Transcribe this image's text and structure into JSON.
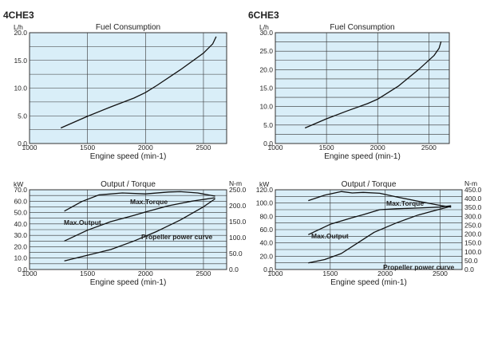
{
  "chart_data": [
    {
      "model": "4CHE3",
      "type": "line",
      "title": "Fuel Consumption",
      "xlabel": "Engine speed (min-1)",
      "ylabel": "L/h",
      "xlim": [
        1000,
        2700
      ],
      "ylim": [
        0,
        20
      ],
      "xticks": [
        "1000",
        "1500",
        "2000",
        "2500"
      ],
      "yticks": [
        "0.0",
        "5.0",
        "10.0",
        "15.0",
        "20.0"
      ],
      "grid": true,
      "series": [
        {
          "x": [
            1270,
            1500,
            1700,
            1900,
            2000,
            2100,
            2300,
            2500,
            2580,
            2610
          ],
          "y": [
            2.8,
            4.9,
            6.6,
            8.2,
            9.2,
            10.5,
            13.3,
            16.3,
            18.0,
            19.3
          ]
        }
      ]
    },
    {
      "model": "6CHE3",
      "type": "line",
      "title": "Fuel Consumption",
      "xlabel": "Engine speed (min-1)",
      "ylabel": "L/h",
      "xlim": [
        1000,
        2700
      ],
      "ylim": [
        0,
        30
      ],
      "xticks": [
        "1000",
        "1500",
        "2000",
        "2500"
      ],
      "yticks": [
        "0.0",
        "5.0",
        "10.0",
        "15.0",
        "20.0",
        "25.0",
        "30.0"
      ],
      "grid": true,
      "series": [
        {
          "x": [
            1290,
            1500,
            1700,
            1900,
            2000,
            2200,
            2400,
            2550,
            2600,
            2620
          ],
          "y": [
            4.2,
            6.7,
            8.8,
            10.8,
            12.0,
            15.5,
            20.0,
            23.8,
            25.8,
            27.6
          ]
        }
      ]
    },
    {
      "model": "4CHE3",
      "type": "line",
      "title": "Output / Torque",
      "xlabel": "Engine speed (min-1)",
      "ylabel": "kW",
      "y2label": "N-m",
      "xlim": [
        1000,
        2700
      ],
      "ylim": [
        0,
        70
      ],
      "y2lim": [
        0,
        250
      ],
      "xticks": [
        "1000",
        "1500",
        "2000",
        "2500"
      ],
      "yticks": [
        "0.0",
        "10.0",
        "20.0",
        "30.0",
        "40.0",
        "50.0",
        "60.0",
        "70.0"
      ],
      "y2ticks": [
        "0.0",
        "50.0",
        "100.0",
        "150.0",
        "200.0",
        "250.0"
      ],
      "grid": true,
      "annotations": [
        "Max.Torque",
        "Max.Output",
        "Propeller power curve"
      ],
      "series": [
        {
          "axis": "right",
          "x": [
            1300,
            1450,
            1600,
            1800,
            2000,
            2200,
            2300,
            2450,
            2600
          ],
          "y": [
            183,
            213,
            234,
            240,
            237,
            243,
            244,
            240,
            230
          ]
        },
        {
          "axis": "left",
          "x": [
            1300,
            1500,
            1700,
            1900,
            2000,
            2200,
            2400,
            2600
          ],
          "y": [
            25,
            34.5,
            42,
            47.5,
            50.5,
            56,
            60,
            63
          ]
        },
        {
          "axis": "left",
          "x": [
            1300,
            1500,
            1700,
            1900,
            2100,
            2300,
            2500,
            2600
          ],
          "y": [
            7.5,
            12.5,
            17.5,
            25,
            33.5,
            43.5,
            55,
            62
          ]
        }
      ]
    },
    {
      "model": "6CHE3",
      "type": "line",
      "title": "Output / Torque",
      "xlabel": "Engine speed (min-1)",
      "ylabel": "kW",
      "y2label": "N-m",
      "xlim": [
        1000,
        2700
      ],
      "ylim": [
        0,
        120
      ],
      "y2lim": [
        0,
        450
      ],
      "xticks": [
        "1000",
        "1500",
        "2000",
        "2500"
      ],
      "yticks": [
        "0.0",
        "20.0",
        "40.0",
        "60.0",
        "80.0",
        "100.0",
        "120.0"
      ],
      "y2ticks": [
        "0.0",
        "50.0",
        "100.0",
        "150.0",
        "200.0",
        "250.0",
        "300.0",
        "350.0",
        "400.0",
        "450.0"
      ],
      "grid": true,
      "annotations": [
        "Max.Torque",
        "Max.Output",
        "Propeller power curve"
      ],
      "series": [
        {
          "axis": "right",
          "x": [
            1300,
            1450,
            1600,
            1700,
            1800,
            1950,
            2100,
            2300,
            2500,
            2600
          ],
          "y": [
            389,
            420,
            440,
            432,
            435,
            430,
            410,
            385,
            362,
            352
          ]
        },
        {
          "axis": "left",
          "x": [
            1300,
            1500,
            1700,
            1800,
            1950,
            2100,
            2300,
            2500,
            2600
          ],
          "y": [
            52.5,
            68,
            78,
            82.5,
            90,
            91.5,
            92.5,
            94,
            96
          ]
        },
        {
          "axis": "left",
          "x": [
            1300,
            1450,
            1600,
            1750,
            1900,
            2100,
            2300,
            2500,
            2600
          ],
          "y": [
            10,
            15,
            24,
            40,
            56,
            70,
            82,
            91,
            95
          ]
        }
      ]
    }
  ]
}
